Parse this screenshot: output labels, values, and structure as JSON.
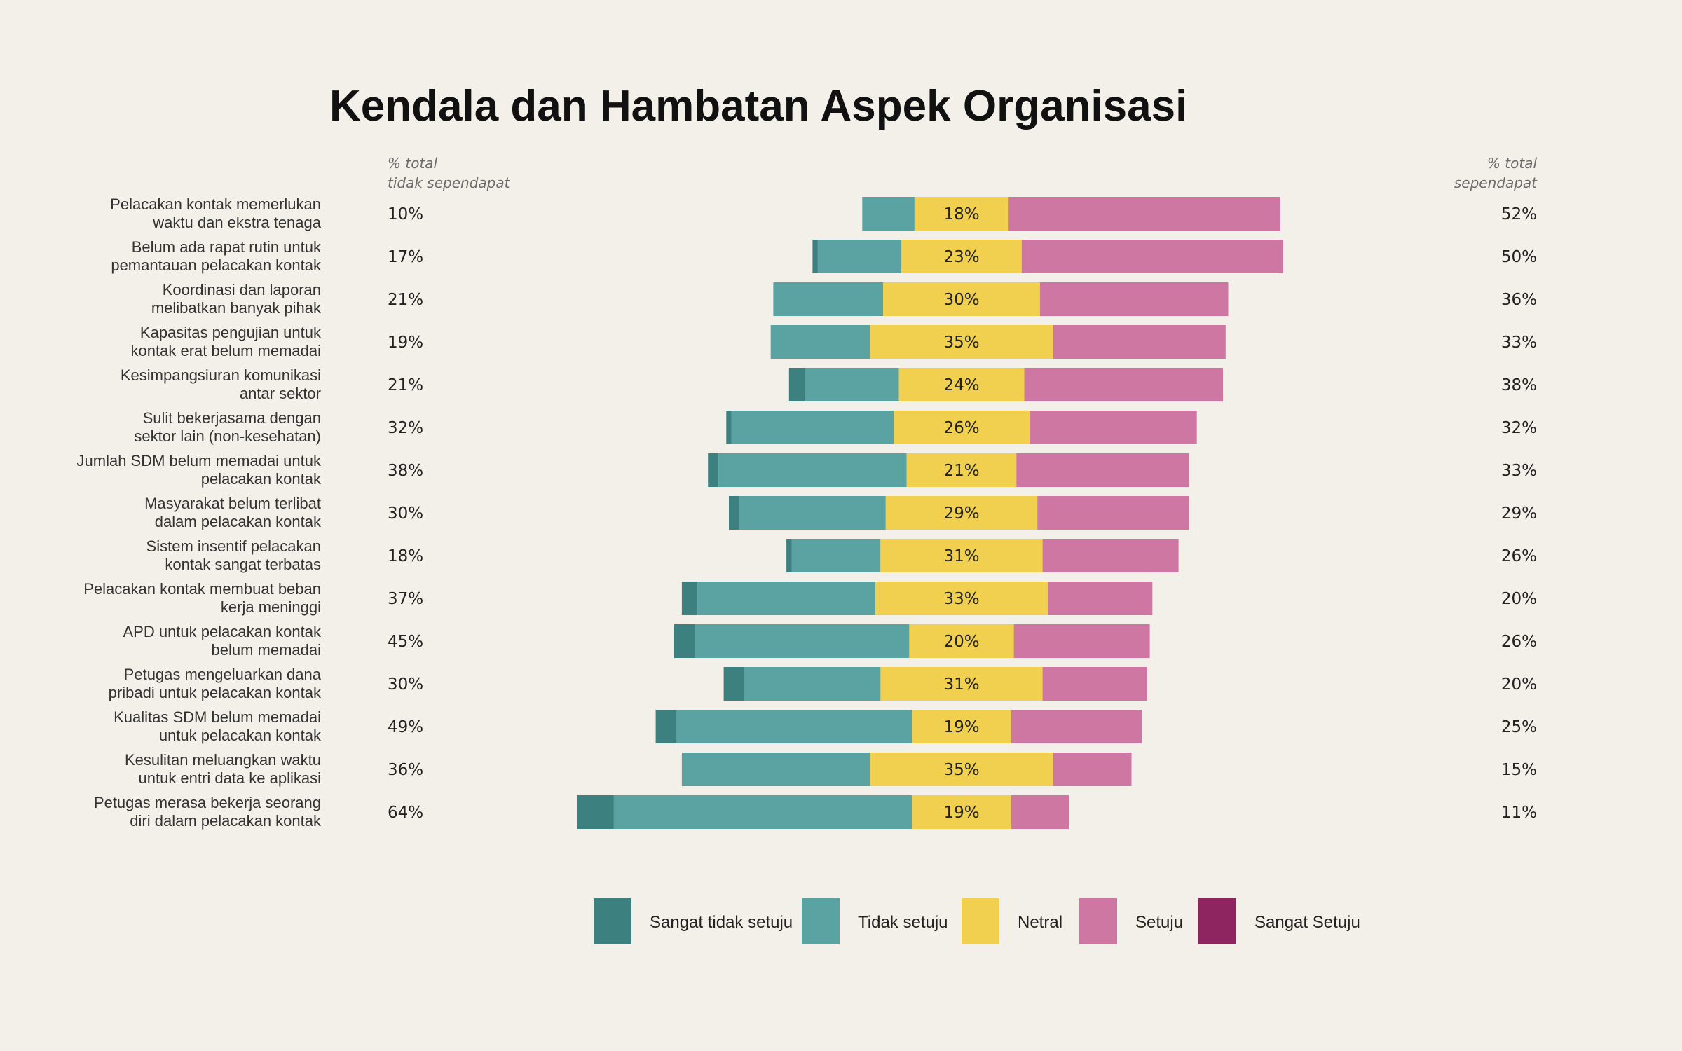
{
  "chart_data": {
    "type": "bar",
    "orientation": "horizontal",
    "stacking": "diverging",
    "title": "Kendala dan Hambatan Aspek Organisasi",
    "left_column_header": [
      "% total",
      "tidak sependapat"
    ],
    "right_column_header": [
      "% total",
      "sependapat"
    ],
    "legend_position": "bottom",
    "series": [
      {
        "name": "Sangat tidak setuju",
        "color": "#3d8080"
      },
      {
        "name": "Tidak setuju",
        "color": "#5aa3a2"
      },
      {
        "name": "Netral",
        "color": "#f1cf4f"
      },
      {
        "name": "Setuju",
        "color": "#cf77a3"
      },
      {
        "name": "Sangat Setuju",
        "color": "#8e2560"
      }
    ],
    "rows": [
      {
        "label": [
          "Pelacakan kontak memerlukan",
          "waktu dan ekstra tenaga"
        ],
        "values": [
          0,
          10,
          18,
          52,
          0
        ],
        "disagree_total": "10%",
        "neutral_label": "18%",
        "agree_total": "52%"
      },
      {
        "label": [
          "Belum ada rapat rutin untuk",
          "pemantauan pelacakan kontak"
        ],
        "values": [
          1,
          16,
          23,
          50,
          0
        ],
        "disagree_total": "17%",
        "neutral_label": "23%",
        "agree_total": "50%"
      },
      {
        "label": [
          "Koordinasi dan laporan",
          "melibatkan banyak pihak"
        ],
        "values": [
          0,
          21,
          30,
          36,
          0
        ],
        "disagree_total": "21%",
        "neutral_label": "30%",
        "agree_total": "36%"
      },
      {
        "label": [
          "Kapasitas pengujian untuk",
          "kontak erat belum memadai"
        ],
        "values": [
          0,
          19,
          35,
          33,
          0
        ],
        "disagree_total": "19%",
        "neutral_label": "35%",
        "agree_total": "33%"
      },
      {
        "label": [
          "Kesimpangsiuran komunikasi",
          "antar sektor"
        ],
        "values": [
          3,
          18,
          24,
          38,
          0
        ],
        "disagree_total": "21%",
        "neutral_label": "24%",
        "agree_total": "38%"
      },
      {
        "label": [
          "Sulit bekerjasama dengan",
          "sektor lain (non-kesehatan)"
        ],
        "values": [
          1,
          31,
          26,
          32,
          0
        ],
        "disagree_total": "32%",
        "neutral_label": "26%",
        "agree_total": "32%"
      },
      {
        "label": [
          "Jumlah SDM belum memadai untuk",
          "pelacakan kontak"
        ],
        "values": [
          2,
          36,
          21,
          33,
          0
        ],
        "disagree_total": "38%",
        "neutral_label": "21%",
        "agree_total": "33%"
      },
      {
        "label": [
          "Masyarakat belum terlibat",
          "dalam pelacakan kontak"
        ],
        "values": [
          2,
          28,
          29,
          29,
          0
        ],
        "disagree_total": "30%",
        "neutral_label": "29%",
        "agree_total": "29%"
      },
      {
        "label": [
          "Sistem insentif pelacakan",
          "kontak sangat terbatas"
        ],
        "values": [
          1,
          17,
          31,
          26,
          0
        ],
        "disagree_total": "18%",
        "neutral_label": "31%",
        "agree_total": "26%"
      },
      {
        "label": [
          "Pelacakan kontak membuat beban",
          "kerja meninggi"
        ],
        "values": [
          3,
          34,
          33,
          20,
          0
        ],
        "disagree_total": "37%",
        "neutral_label": "33%",
        "agree_total": "20%"
      },
      {
        "label": [
          "APD untuk pelacakan kontak",
          "belum memadai"
        ],
        "values": [
          4,
          41,
          20,
          26,
          0
        ],
        "disagree_total": "45%",
        "neutral_label": "20%",
        "agree_total": "26%"
      },
      {
        "label": [
          "Petugas mengeluarkan dana",
          "pribadi untuk pelacakan kontak"
        ],
        "values": [
          4,
          26,
          31,
          20,
          0
        ],
        "disagree_total": "30%",
        "neutral_label": "31%",
        "agree_total": "20%"
      },
      {
        "label": [
          "Kualitas SDM belum memadai",
          "untuk pelacakan kontak"
        ],
        "values": [
          4,
          45,
          19,
          25,
          0
        ],
        "disagree_total": "49%",
        "neutral_label": "19%",
        "agree_total": "25%"
      },
      {
        "label": [
          "Kesulitan meluangkan waktu",
          "untuk entri data ke aplikasi"
        ],
        "values": [
          0,
          36,
          35,
          15,
          0
        ],
        "disagree_total": "36%",
        "neutral_label": "35%",
        "agree_total": "15%"
      },
      {
        "label": [
          "Petugas merasa bekerja seorang",
          "diri dalam pelacakan kontak"
        ],
        "values": [
          7,
          57,
          19,
          11,
          0
        ],
        "disagree_total": "64%",
        "neutral_label": "19%",
        "agree_total": "11%"
      }
    ]
  }
}
